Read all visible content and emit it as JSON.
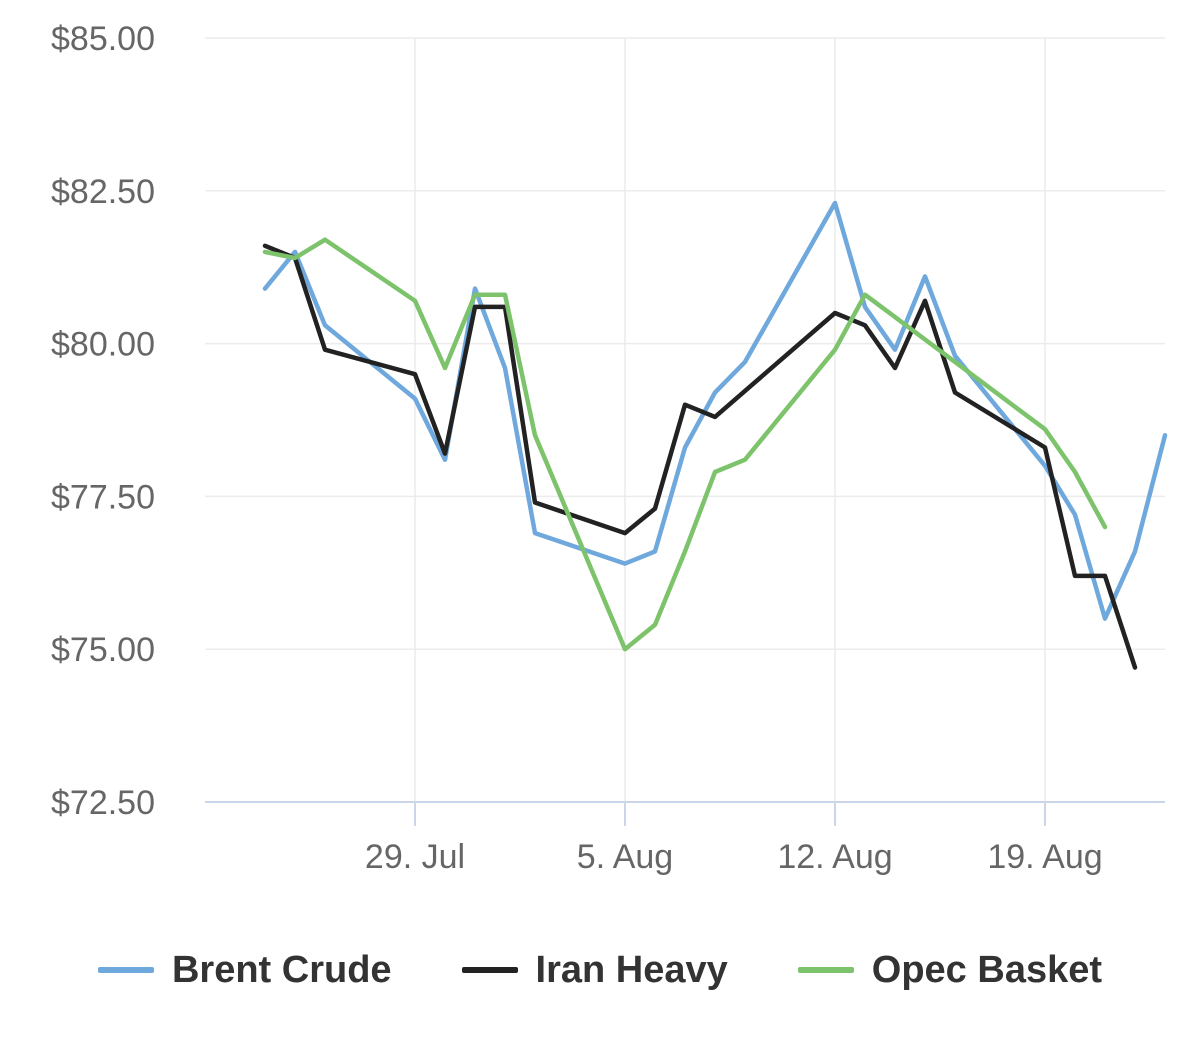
{
  "chart_data": {
    "type": "line",
    "title": "",
    "xlabel": "",
    "ylabel": "",
    "ylim": [
      72.5,
      85
    ],
    "yticks": [
      72.5,
      75,
      77.5,
      80,
      82.5,
      85
    ],
    "ytick_labels": [
      "$72.50",
      "$75.00",
      "$77.50",
      "$80.00",
      "$82.50",
      "$85.00"
    ],
    "xlim": [
      "2019-07-22",
      "2019-08-23"
    ],
    "xticks": [
      {
        "date": "2019-07-29",
        "label": "29. Jul"
      },
      {
        "date": "2019-08-05",
        "label": "5. Aug"
      },
      {
        "date": "2019-08-12",
        "label": "12. Aug"
      },
      {
        "date": "2019-08-19",
        "label": "19. Aug"
      }
    ],
    "grid": true,
    "legend_position": "bottom",
    "series": [
      {
        "name": "Brent Crude",
        "color": "#6fa8dc",
        "points": [
          [
            "2019-07-24",
            80.9
          ],
          [
            "2019-07-25",
            81.5
          ],
          [
            "2019-07-26",
            80.3
          ],
          [
            "2019-07-29",
            79.1
          ],
          [
            "2019-07-30",
            78.1
          ],
          [
            "2019-07-31",
            80.9
          ],
          [
            "2019-08-01",
            79.6
          ],
          [
            "2019-08-02",
            76.9
          ],
          [
            "2019-08-05",
            76.4
          ],
          [
            "2019-08-06",
            76.6
          ],
          [
            "2019-08-07",
            78.3
          ],
          [
            "2019-08-08",
            79.2
          ],
          [
            "2019-08-09",
            79.7
          ],
          [
            "2019-08-12",
            82.3
          ],
          [
            "2019-08-13",
            80.6
          ],
          [
            "2019-08-14",
            79.9
          ],
          [
            "2019-08-15",
            81.1
          ],
          [
            "2019-08-16",
            79.8
          ],
          [
            "2019-08-19",
            78.0
          ],
          [
            "2019-08-20",
            77.2
          ],
          [
            "2019-08-21",
            75.5
          ],
          [
            "2019-08-22",
            76.6
          ],
          [
            "2019-08-23",
            78.5
          ]
        ]
      },
      {
        "name": "Iran Heavy",
        "color": "#222222",
        "points": [
          [
            "2019-07-24",
            81.6
          ],
          [
            "2019-07-25",
            81.4
          ],
          [
            "2019-07-26",
            79.9
          ],
          [
            "2019-07-29",
            79.5
          ],
          [
            "2019-07-30",
            78.2
          ],
          [
            "2019-07-31",
            80.6
          ],
          [
            "2019-08-01",
            80.6
          ],
          [
            "2019-08-02",
            77.4
          ],
          [
            "2019-08-05",
            76.9
          ],
          [
            "2019-08-06",
            77.3
          ],
          [
            "2019-08-07",
            79.0
          ],
          [
            "2019-08-08",
            78.8
          ],
          [
            "2019-08-12",
            80.5
          ],
          [
            "2019-08-13",
            80.3
          ],
          [
            "2019-08-14",
            79.6
          ],
          [
            "2019-08-15",
            80.7
          ],
          [
            "2019-08-16",
            79.2
          ],
          [
            "2019-08-19",
            78.3
          ],
          [
            "2019-08-20",
            76.2
          ],
          [
            "2019-08-21",
            76.2
          ],
          [
            "2019-08-22",
            74.7
          ]
        ]
      },
      {
        "name": "Opec Basket",
        "color": "#7dc36b",
        "points": [
          [
            "2019-07-24",
            81.5
          ],
          [
            "2019-07-25",
            81.4
          ],
          [
            "2019-07-26",
            81.7
          ],
          [
            "2019-07-29",
            80.7
          ],
          [
            "2019-07-30",
            79.6
          ],
          [
            "2019-07-31",
            80.8
          ],
          [
            "2019-08-01",
            80.8
          ],
          [
            "2019-08-02",
            78.5
          ],
          [
            "2019-08-05",
            75.0
          ],
          [
            "2019-08-06",
            75.4
          ],
          [
            "2019-08-07",
            76.6
          ],
          [
            "2019-08-08",
            77.9
          ],
          [
            "2019-08-09",
            78.1
          ],
          [
            "2019-08-12",
            79.9
          ],
          [
            "2019-08-13",
            80.8
          ],
          [
            "2019-08-16",
            79.7
          ],
          [
            "2019-08-19",
            78.6
          ],
          [
            "2019-08-20",
            77.9
          ],
          [
            "2019-08-21",
            77.0
          ]
        ]
      }
    ]
  },
  "legend": {
    "items": [
      {
        "label": "Brent Crude",
        "color": "#6fa8dc"
      },
      {
        "label": "Iran Heavy",
        "color": "#222222"
      },
      {
        "label": "Opec Basket",
        "color": "#7dc36b"
      }
    ]
  }
}
